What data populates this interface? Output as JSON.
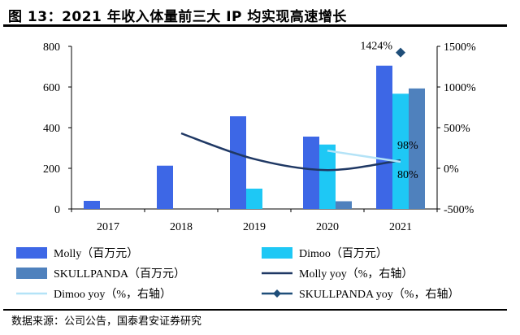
{
  "title": "图 13：2021 年收入体量前三大 IP 均实现高速增长",
  "source": "数据来源：公司公告，国泰君安证券研究",
  "colors": {
    "molly_bar": "#3d67e6",
    "dimoo_bar": "#1ec8f5",
    "skull_bar": "#4f81bd",
    "molly_line": "#1f3864",
    "dimoo_line": "#b4e3f7",
    "skull_marker": "#1f4e79"
  },
  "chart_data": {
    "type": "bar",
    "categories": [
      "2017",
      "2018",
      "2019",
      "2020",
      "2021"
    ],
    "y_left": {
      "ylim": [
        0,
        800
      ],
      "ticks": [
        "0",
        "200",
        "400",
        "600",
        "800"
      ]
    },
    "y_right": {
      "ylim": [
        -500,
        1500
      ],
      "ticks": [
        "-500%",
        "0%",
        "500%",
        "1000%",
        "1500%"
      ]
    },
    "bar_series": [
      {
        "name": "Molly（百万元）",
        "values": [
          40,
          213,
          456,
          356,
          705
        ]
      },
      {
        "name": "Dimoo（百万元）",
        "values": [
          null,
          null,
          100,
          317,
          567
        ]
      },
      {
        "name": "SKULLPANDA（百万元）",
        "values": [
          null,
          null,
          null,
          38,
          593
        ]
      }
    ],
    "line_series": [
      {
        "name": "Molly yoy（%，右轴）",
        "values": [
          null,
          430,
          114,
          -22,
          98
        ]
      },
      {
        "name": "Dimoo yoy（%，右轴）",
        "values": [
          null,
          null,
          null,
          217,
          80
        ]
      },
      {
        "name": "SKULLPANDA yoy（%，右轴）",
        "values": [
          null,
          null,
          null,
          null,
          1424
        ]
      }
    ],
    "data_labels": [
      {
        "text": "1424%",
        "series": "SKULLPANDA yoy（%，右轴）",
        "category": "2021"
      },
      {
        "text": "98%",
        "series": "Molly yoy（%，右轴）",
        "category": "2021"
      },
      {
        "text": "80%",
        "series": "Dimoo yoy（%，右轴）",
        "category": "2021"
      }
    ],
    "legend": {
      "placement": "bottom",
      "items": [
        {
          "label": "Molly（百万元）",
          "kind": "bar",
          "color": "#3d67e6"
        },
        {
          "label": "Dimoo（百万元）",
          "kind": "bar",
          "color": "#1ec8f5"
        },
        {
          "label": "SKULLPANDA（百万元）",
          "kind": "bar",
          "color": "#4f81bd"
        },
        {
          "label": "Molly yoy（%，右轴）",
          "kind": "line",
          "color": "#1f3864"
        },
        {
          "label": "Dimoo yoy（%，右轴）",
          "kind": "line",
          "color": "#b4e3f7"
        },
        {
          "label": "SKULLPANDA yoy（%，右轴）",
          "kind": "line-diamond",
          "color": "#1f4e79"
        }
      ]
    }
  }
}
